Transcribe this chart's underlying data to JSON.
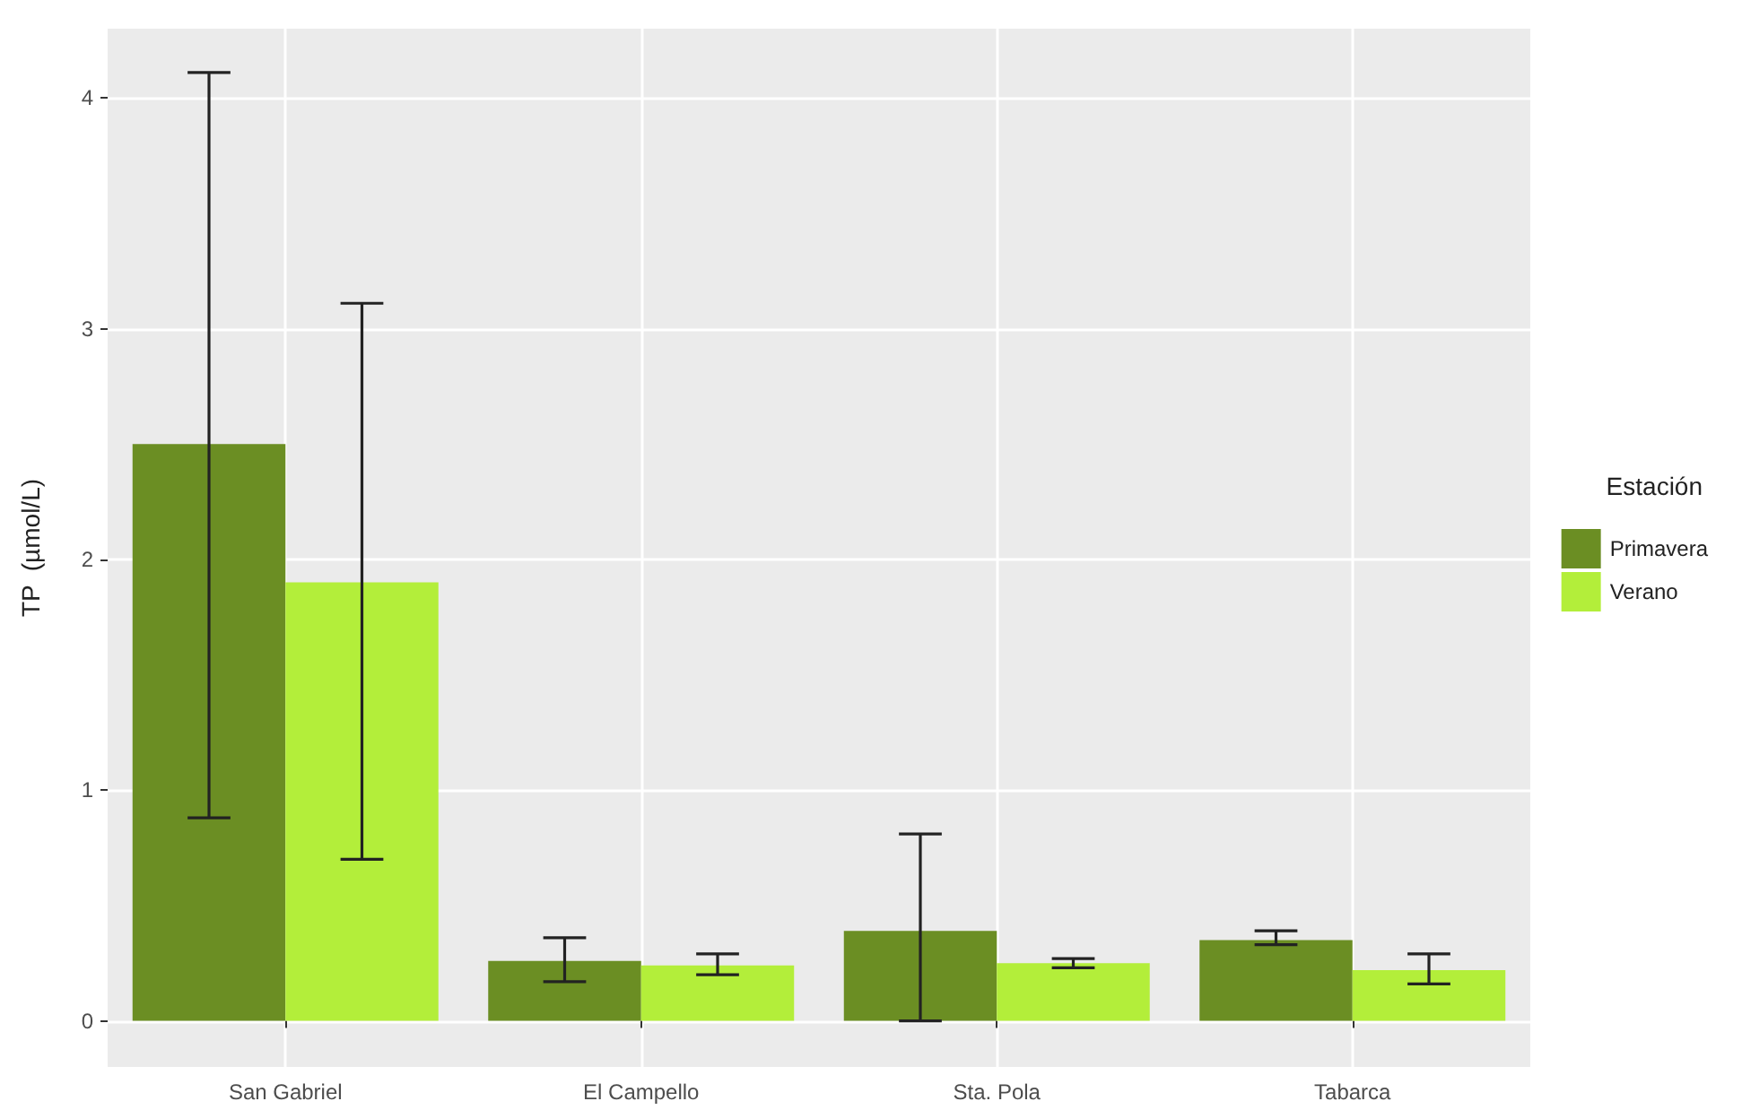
{
  "chart_data": {
    "type": "bar",
    "ylabel": "TP  (µmol/L)",
    "legend_title": "Estación",
    "categories": [
      "San Gabriel",
      "El Campello",
      "Sta. Pola",
      "Tabarca"
    ],
    "series": [
      {
        "name": "Primavera",
        "color": "#6b8e23",
        "values": [
          2.5,
          0.26,
          0.39,
          0.35
        ],
        "errors": [
          [
            0.88,
            4.11
          ],
          [
            0.17,
            0.36
          ],
          [
            0,
            0.81
          ],
          [
            0.33,
            0.39
          ]
        ]
      },
      {
        "name": "Verano",
        "color": "#b3ee3a",
        "values": [
          1.9,
          0.24,
          0.25,
          0.22
        ],
        "errors": [
          [
            0.7,
            3.11
          ],
          [
            0.2,
            0.29
          ],
          [
            0.23,
            0.27
          ],
          [
            0.16,
            0.29
          ]
        ]
      }
    ],
    "ylim": [
      -0.2,
      4.3
    ],
    "yticks": [
      0,
      1,
      2,
      3,
      4
    ],
    "grid": true,
    "legend": "right"
  }
}
